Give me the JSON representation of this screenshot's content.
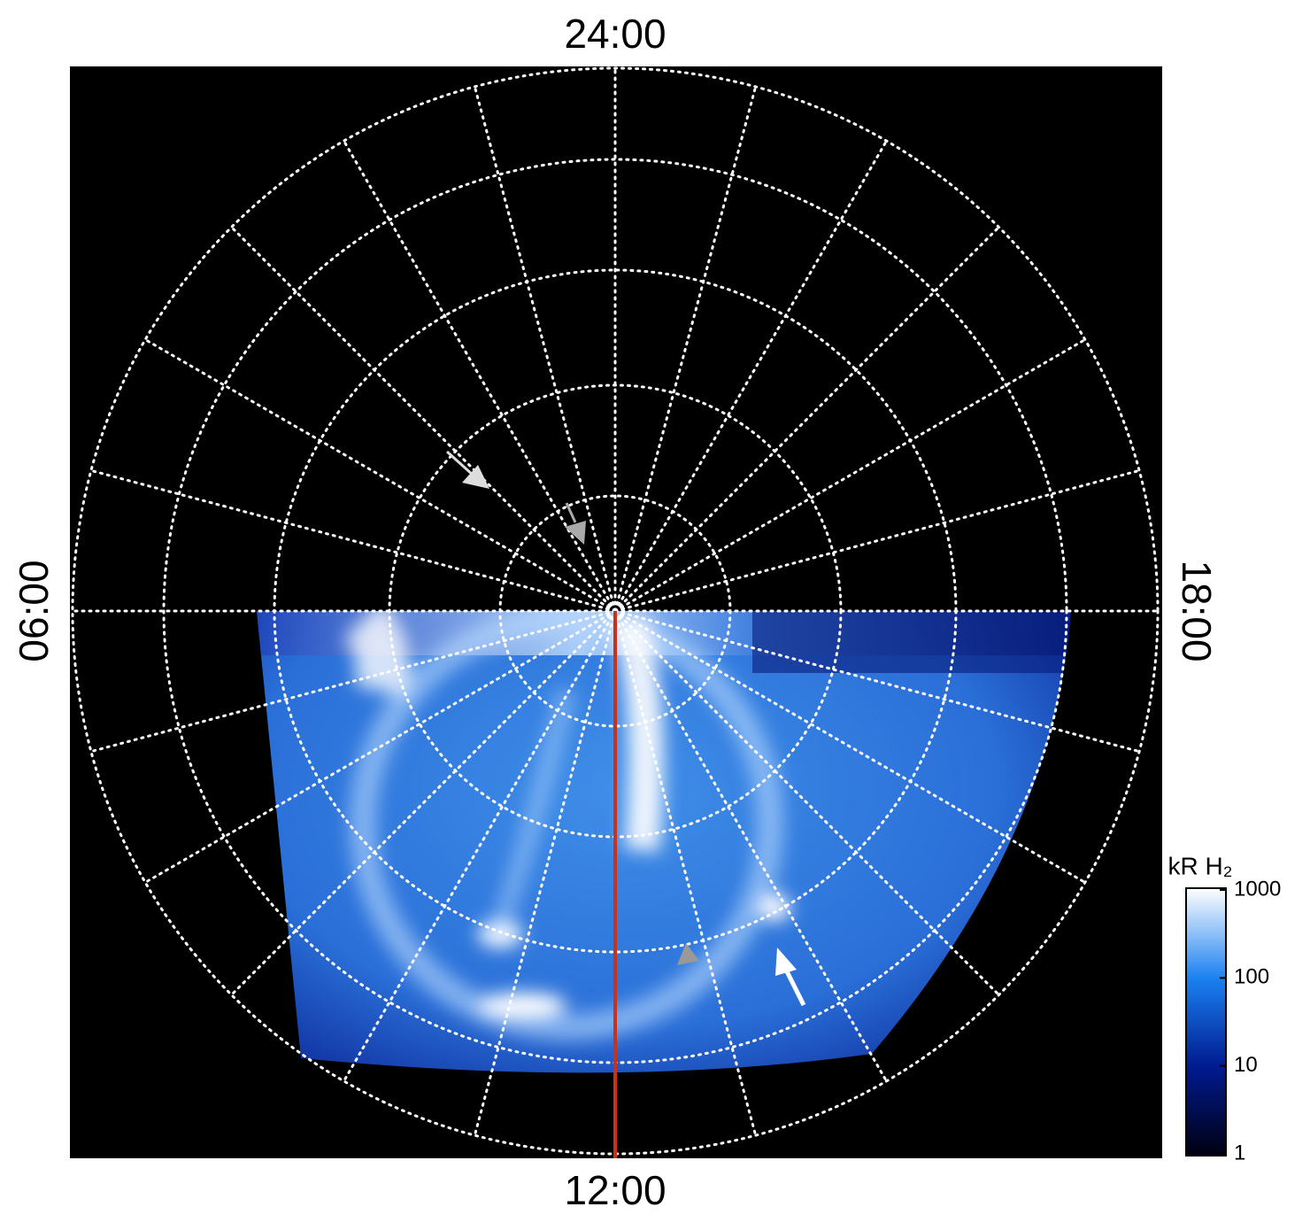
{
  "chart_data": {
    "type": "image",
    "labels": {
      "top": "24:00",
      "bottom": "12:00",
      "left": "06:00",
      "right": "18:00"
    },
    "colorbar": {
      "label": "kR H₂",
      "log": true,
      "clim": [
        1,
        1000
      ],
      "yticks": [
        1,
        10,
        100,
        1000
      ]
    }
  }
}
